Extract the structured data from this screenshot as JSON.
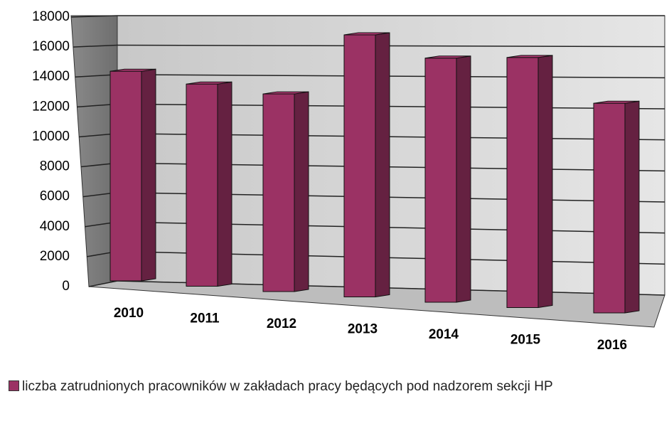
{
  "chart_data": {
    "type": "bar3d",
    "categories": [
      "2010",
      "2011",
      "2012",
      "2013",
      "2014",
      "2015",
      "2016"
    ],
    "series": [
      {
        "name": "liczba zatrudnionych pracowników w zakładach pracy będących pod nadzorem sekcji HP",
        "color": "#9b3264",
        "values": [
          14000,
          13500,
          13200,
          17500,
          16300,
          16700,
          14000
        ]
      }
    ],
    "ylim": [
      0,
      18000
    ],
    "yticks": [
      0,
      2000,
      4000,
      6000,
      8000,
      10000,
      12000,
      14000,
      16000,
      18000
    ],
    "grid": true,
    "legend": "bottom"
  }
}
